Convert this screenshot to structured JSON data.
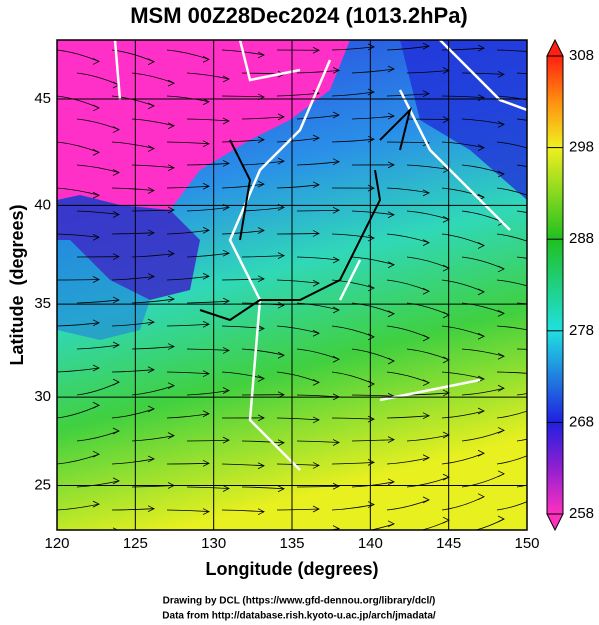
{
  "title": "MSM 00Z28Dec2024 (1013.2hPa)",
  "x_axis": {
    "label": "Longitude (degrees)",
    "lim": [
      120,
      150
    ],
    "ticks": [
      120,
      125,
      130,
      135,
      140,
      145,
      150
    ]
  },
  "y_axis": {
    "label": "Latitude  (degrees)",
    "lim": [
      22.4,
      47.6
    ],
    "ticks": [
      25,
      30,
      35,
      40,
      45
    ],
    "projection": "mercator"
  },
  "colorbar": {
    "lim": [
      258,
      308
    ],
    "ticks": [
      258,
      268,
      278,
      288,
      298,
      308
    ]
  },
  "footer": [
    "Drawing by DCL (https://www.gfd-dennou.org/library/dcl/)",
    "Data from http://database.rish.kyoto-u.ac.jp/arch/jmadata/"
  ]
}
